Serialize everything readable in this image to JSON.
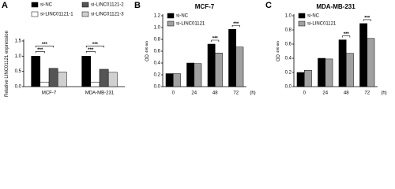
{
  "chart_data": [
    {
      "type": "bar",
      "panel_label": "A",
      "ylabel": "Relative LINC01121 expression",
      "categories": [
        "MCF-7",
        "MDA-MB-231"
      ],
      "series": [
        {
          "name": "si-NC",
          "color": "#000000",
          "values": [
            1.0,
            1.0
          ]
        },
        {
          "name": "si-LINC01121-1",
          "color": "#ffffff",
          "values": [
            0.15,
            0.15
          ]
        },
        {
          "name": "si-LINC01121-2",
          "color": "#555555",
          "values": [
            0.6,
            0.57
          ]
        },
        {
          "name": "si-LINC01121-3",
          "color": "#d0d0d0",
          "values": [
            0.48,
            0.47
          ]
        }
      ],
      "ylim": [
        0,
        1.5
      ],
      "yticks": [
        {
          "value": 0,
          "label": "0.0"
        },
        0.5,
        {
          "value": 1,
          "label": "1.0"
        },
        1.5
      ],
      "annotations": [
        {
          "text": "***",
          "category": "MCF-7"
        },
        {
          "text": "***",
          "category": "MCF-7"
        },
        {
          "text": "***",
          "category": "MDA-MB-231"
        },
        {
          "text": "***",
          "category": "MDA-MB-231"
        }
      ]
    },
    {
      "type": "bar",
      "panel_label": "B",
      "title": "MCF-7",
      "ylabel": "OD",
      "ylabel_sub": "490 nm",
      "xlabel": "(h)",
      "categories": [
        "0",
        "24",
        "48",
        "72"
      ],
      "series": [
        {
          "name": "si-NC",
          "color": "#000000",
          "values": [
            0.22,
            0.4,
            0.72,
            0.97
          ]
        },
        {
          "name": "si-LINC01121",
          "color": "#a0a0a0",
          "values": [
            0.22,
            0.39,
            0.57,
            0.67
          ]
        }
      ],
      "ylim": [
        0,
        1.2
      ],
      "yticks": [
        {
          "value": 0,
          "label": "0.0"
        },
        0.2,
        0.4,
        0.6,
        0.8,
        {
          "value": 1,
          "label": "1.0"
        },
        1.2
      ],
      "annotations": [
        {
          "text": "***",
          "category": "48"
        },
        {
          "text": "***",
          "category": "72"
        }
      ]
    },
    {
      "type": "bar",
      "panel_label": "C",
      "title": "MDA-MB-231",
      "ylabel": "OD",
      "ylabel_sub": "490 nm",
      "xlabel": "(h)",
      "categories": [
        "0",
        "24",
        "48",
        "72"
      ],
      "series": [
        {
          "name": "si-NC",
          "color": "#000000",
          "values": [
            0.2,
            0.4,
            0.66,
            0.89
          ]
        },
        {
          "name": "si-LINC01121",
          "color": "#a0a0a0",
          "values": [
            0.23,
            0.39,
            0.47,
            0.68
          ]
        }
      ],
      "ylim": [
        0,
        1.0
      ],
      "yticks": [
        {
          "value": 0,
          "label": "0.0"
        },
        0.2,
        0.4,
        0.6,
        0.8,
        {
          "value": 1,
          "label": "1.0"
        }
      ],
      "annotations": [
        {
          "text": "***",
          "category": "48"
        },
        {
          "text": "***",
          "category": "72"
        }
      ]
    }
  ]
}
